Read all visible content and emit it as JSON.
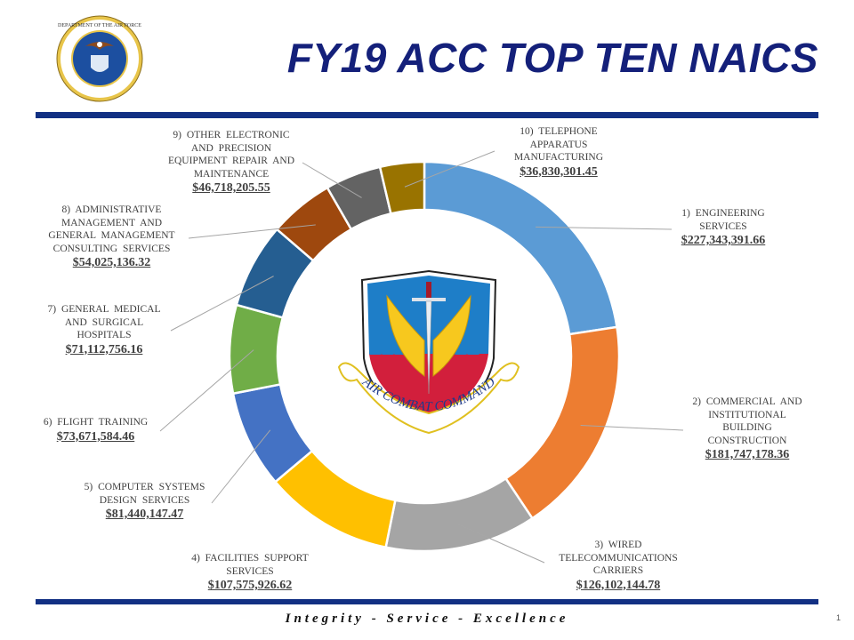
{
  "header": {
    "title": "FY19 ACC TOP TEN NAICS",
    "seal_icon": "department-of-the-air-force-seal"
  },
  "footer": {
    "motto": "Integrity - Service - Excellence",
    "page_number": "1"
  },
  "center_emblem": {
    "icon": "air-combat-command-shield",
    "text": "AIR COMBAT COMMAND"
  },
  "chart_data": {
    "type": "pie",
    "variant": "donut",
    "title": "FY19 ACC TOP TEN NAICS",
    "categories": [
      "1) ENGINEERING SERVICES",
      "2) COMMERCIAL AND INSTITUTIONAL BUILDING CONSTRUCTION",
      "3) WIRED TELECOMMUNICATIONS CARRIERS",
      "4) FACILITIES SUPPORT SERVICES",
      "5) COMPUTER SYSTEMS DESIGN SERVICES",
      "6) FLIGHT TRAINING",
      "7) GENERAL MEDICAL AND SURGICAL HOSPITALS",
      "8) ADMINISTRATIVE MANAGEMENT AND GENERAL MANAGEMENT CONSULTING SERVICES",
      "9) OTHER ELECTRONIC AND PRECISION EQUIPMENT REPAIR AND MAINTENANCE",
      "10) TELEPHONE APPARATUS MANUFACTURING"
    ],
    "values": [
      227343391.66,
      181747178.36,
      126102144.78,
      107575926.62,
      81440147.47,
      73671584.46,
      71112756.16,
      54025136.32,
      46718205.55,
      36830301.45
    ],
    "value_labels": [
      "$227,343,391.66",
      "$181,747,178.36",
      "$126,102,144.78",
      "$107,575,926.62",
      "$81,440,147.47",
      "$73,671,584.46",
      "$71,112,756.16",
      "$54,025,136.32",
      "$46,718,205.55",
      "$36,830,301.45"
    ],
    "colors": [
      "#5b9bd5",
      "#ed7d31",
      "#a5a5a5",
      "#ffc000",
      "#4472c4",
      "#70ad47",
      "#255e91",
      "#9e480e",
      "#636363",
      "#997300"
    ],
    "legend": "none (data labels with leader lines)"
  },
  "labels": [
    {
      "lines": [
        "1) ENGINEERING",
        "SERVICES"
      ],
      "value": "$227,343,391.66"
    },
    {
      "lines": [
        "2) COMMERCIAL AND",
        "INSTITUTIONAL",
        "BUILDING",
        "CONSTRUCTION"
      ],
      "value": "$181,747,178.36"
    },
    {
      "lines": [
        "3) WIRED",
        "TELECOMMUNICATIONS",
        "CARRIERS"
      ],
      "value": "$126,102,144.78"
    },
    {
      "lines": [
        "4) FACILITIES SUPPORT",
        "SERVICES"
      ],
      "value": "$107,575,926.62"
    },
    {
      "lines": [
        "5) COMPUTER SYSTEMS",
        "DESIGN SERVICES"
      ],
      "value": "$81,440,147.47"
    },
    {
      "lines": [
        "6) FLIGHT TRAINING"
      ],
      "value": "$73,671,584.46"
    },
    {
      "lines": [
        "7) GENERAL MEDICAL",
        "AND SURGICAL",
        "HOSPITALS"
      ],
      "value": "$71,112,756.16"
    },
    {
      "lines": [
        "8) ADMINISTRATIVE",
        "MANAGEMENT AND",
        "GENERAL MANAGEMENT",
        "CONSULTING SERVICES"
      ],
      "value": "$54,025,136.32"
    },
    {
      "lines": [
        "9) OTHER ELECTRONIC",
        "AND PRECISION",
        "EQUIPMENT REPAIR AND",
        "MAINTENANCE"
      ],
      "value": "$46,718,205.55"
    },
    {
      "lines": [
        "10) TELEPHONE",
        "APPARATUS",
        "MANUFACTURING"
      ],
      "value": "$36,830,301.45"
    }
  ]
}
